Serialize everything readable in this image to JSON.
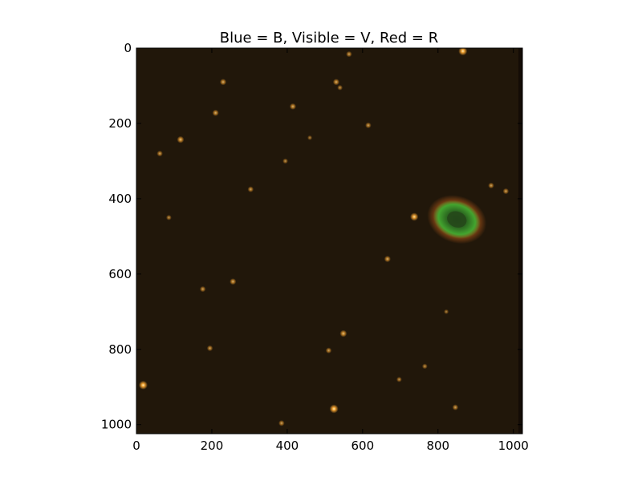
{
  "chart_data": {
    "type": "image",
    "title": "Blue = B, Visible = V, Red = R",
    "xlabel": "",
    "ylabel": "",
    "xlim": [
      0,
      1024
    ],
    "ylim": [
      1024,
      0
    ],
    "y_axis_inverted": true,
    "grid": false,
    "x_ticks": [
      0,
      200,
      400,
      600,
      800,
      1000
    ],
    "y_ticks": [
      0,
      200,
      400,
      600,
      800,
      1000
    ],
    "background_color": "#21170a",
    "nebula": {
      "center": [
        850,
        455
      ],
      "radius_x": 70,
      "radius_y": 50,
      "ring_color": "#3f9a2c",
      "halo_color": "#b35a1a",
      "core_color": "#24471a"
    },
    "stars": [
      {
        "x": 866,
        "y": 8,
        "b": 1.0
      },
      {
        "x": 564,
        "y": 16,
        "b": 0.5
      },
      {
        "x": 230,
        "y": 90,
        "b": 0.6
      },
      {
        "x": 530,
        "y": 90,
        "b": 0.6
      },
      {
        "x": 415,
        "y": 155,
        "b": 0.6
      },
      {
        "x": 210,
        "y": 172,
        "b": 0.6
      },
      {
        "x": 117,
        "y": 243,
        "b": 0.7
      },
      {
        "x": 62,
        "y": 280,
        "b": 0.5
      },
      {
        "x": 615,
        "y": 205,
        "b": 0.5
      },
      {
        "x": 395,
        "y": 300,
        "b": 0.4
      },
      {
        "x": 303,
        "y": 375,
        "b": 0.5
      },
      {
        "x": 941,
        "y": 365,
        "b": 0.5
      },
      {
        "x": 980,
        "y": 380,
        "b": 0.5
      },
      {
        "x": 737,
        "y": 448,
        "b": 0.9
      },
      {
        "x": 666,
        "y": 560,
        "b": 0.6
      },
      {
        "x": 256,
        "y": 620,
        "b": 0.6
      },
      {
        "x": 176,
        "y": 640,
        "b": 0.5
      },
      {
        "x": 549,
        "y": 758,
        "b": 0.7
      },
      {
        "x": 195,
        "y": 797,
        "b": 0.5
      },
      {
        "x": 510,
        "y": 803,
        "b": 0.5
      },
      {
        "x": 765,
        "y": 845,
        "b": 0.4
      },
      {
        "x": 18,
        "y": 895,
        "b": 1.0
      },
      {
        "x": 524,
        "y": 958,
        "b": 1.0
      },
      {
        "x": 846,
        "y": 954,
        "b": 0.5
      },
      {
        "x": 385,
        "y": 996,
        "b": 0.5
      },
      {
        "x": 697,
        "y": 880,
        "b": 0.4
      },
      {
        "x": 86,
        "y": 450,
        "b": 0.4
      },
      {
        "x": 540,
        "y": 105,
        "b": 0.4
      },
      {
        "x": 460,
        "y": 238,
        "b": 0.3
      },
      {
        "x": 822,
        "y": 700,
        "b": 0.3
      }
    ]
  }
}
